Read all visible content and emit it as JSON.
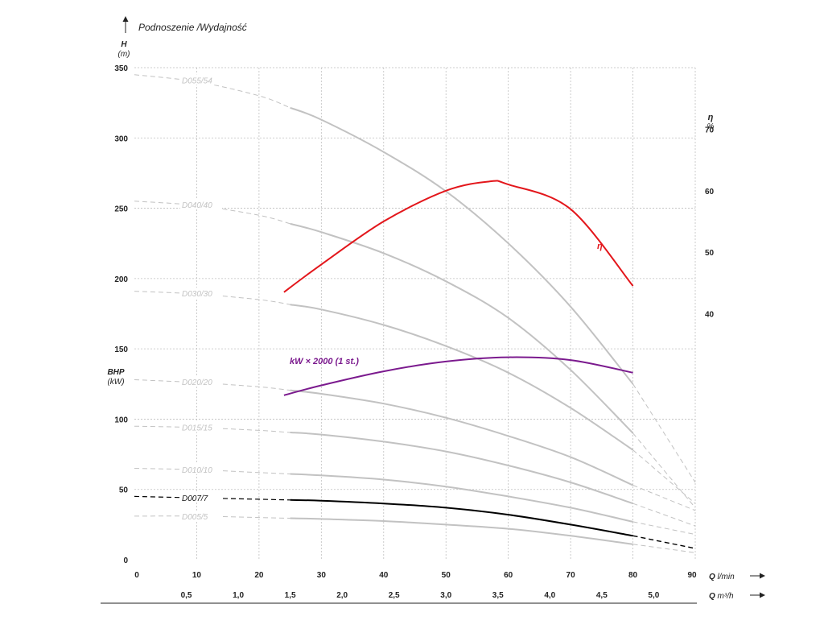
{
  "chart_data": {
    "type": "line",
    "title": "Podnoszenie /Wydajność",
    "left_axis": {
      "label": "H",
      "unit": "(m)",
      "ylim": [
        0,
        350
      ],
      "ticks": [
        0,
        50,
        100,
        150,
        200,
        250,
        300,
        350
      ]
    },
    "left_axis_secondary": {
      "label": "BHP",
      "unit": "(kW)"
    },
    "right_axis": {
      "label": "η",
      "unit": "%",
      "ylim": [
        0,
        80
      ],
      "ticks": [
        40,
        50,
        60,
        70
      ]
    },
    "x_axis": {
      "label": "Q",
      "unit": "l/min",
      "xlim": [
        0,
        90
      ],
      "ticks": [
        0,
        10,
        20,
        30,
        40,
        50,
        60,
        70,
        80,
        90
      ]
    },
    "x_axis_secondary": {
      "label": "Q",
      "unit": "m³/h",
      "ticks": [
        "0,5",
        "1,0",
        "1,5",
        "2,0",
        "2,5",
        "3,0",
        "3,5",
        "4,0",
        "4,5",
        "5,0"
      ],
      "tick_values": [
        0.5,
        1.0,
        1.5,
        2.0,
        2.5,
        3.0,
        3.5,
        4.0,
        4.5,
        5.0
      ]
    },
    "grid": true,
    "colors": {
      "gray": "#c2c2c2",
      "highlight": "#000000",
      "efficiency": "#e3161b",
      "power": "#7b1a8e",
      "grid": "#bfbfbf"
    },
    "series": [
      {
        "name": "D055/54",
        "color": "#c2c2c2",
        "x": [
          0,
          10,
          20,
          30,
          40,
          50,
          60,
          70,
          80,
          90
        ],
        "y": [
          345,
          340,
          330,
          313,
          290,
          262,
          225,
          180,
          125,
          55
        ]
      },
      {
        "name": "D040/40",
        "color": "#c2c2c2",
        "x": [
          0,
          10,
          20,
          30,
          40,
          50,
          60,
          70,
          80,
          90
        ],
        "y": [
          255,
          252,
          245,
          233,
          218,
          198,
          172,
          135,
          90,
          37
        ]
      },
      {
        "name": "D030/30",
        "color": "#c2c2c2",
        "x": [
          0,
          10,
          20,
          30,
          40,
          50,
          60,
          70,
          80,
          90
        ],
        "y": [
          191,
          189,
          185,
          178,
          167,
          152,
          133,
          108,
          78,
          40
        ]
      },
      {
        "name": "D020/20",
        "color": "#c2c2c2",
        "x": [
          0,
          10,
          20,
          30,
          40,
          50,
          60,
          70,
          80,
          90
        ],
        "y": [
          128,
          126,
          123,
          118,
          111,
          101,
          88,
          73,
          53,
          35
        ]
      },
      {
        "name": "D015/15",
        "color": "#c2c2c2",
        "x": [
          0,
          10,
          20,
          30,
          40,
          50,
          60,
          70,
          80,
          90
        ],
        "y": [
          95,
          94,
          92,
          89,
          84,
          77,
          67,
          55,
          40,
          24
        ]
      },
      {
        "name": "D010/10",
        "color": "#c2c2c2",
        "x": [
          0,
          10,
          20,
          30,
          40,
          50,
          60,
          70,
          80,
          90
        ],
        "y": [
          65,
          64,
          62,
          60,
          57,
          52,
          45,
          37,
          27,
          18
        ]
      },
      {
        "name": "D007/7",
        "color": "#000000",
        "highlight": true,
        "x": [
          0,
          10,
          20,
          30,
          40,
          50,
          60,
          70,
          80,
          90
        ],
        "y": [
          45,
          44,
          43,
          42,
          40,
          37,
          32,
          25,
          17,
          8
        ]
      },
      {
        "name": "D005/5",
        "color": "#c2c2c2",
        "x": [
          0,
          10,
          20,
          30,
          40,
          50,
          60,
          70,
          80,
          90
        ],
        "y": [
          31,
          31,
          30,
          29,
          27.5,
          25,
          22,
          17,
          11,
          5
        ]
      }
    ],
    "efficiency": {
      "name": "η",
      "color": "#e3161b",
      "axis": "right",
      "x": [
        24,
        30,
        40,
        50,
        57,
        60,
        70,
        80
      ],
      "y": [
        43.5,
        48,
        55,
        60,
        61.5,
        61,
        57,
        44.5
      ]
    },
    "power": {
      "name": "kW × 2000 (1 st.)",
      "color": "#7b1a8e",
      "axis": "left",
      "x": [
        24,
        30,
        40,
        50,
        60,
        70,
        80
      ],
      "y": [
        117,
        124,
        134,
        141,
        144,
        142,
        133
      ]
    }
  }
}
